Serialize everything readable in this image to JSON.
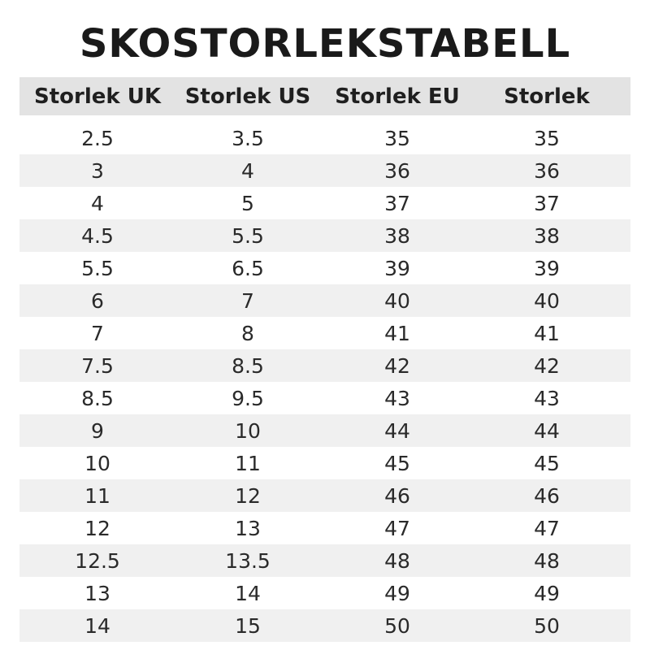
{
  "title": "SKOSTORLEKSTABELL",
  "table": {
    "header": [
      "Storlek UK",
      "Storlek US",
      "Storlek EU",
      "Storlek"
    ],
    "rows": [
      [
        2.5,
        3.5,
        35,
        35
      ],
      [
        3,
        4,
        36,
        36
      ],
      [
        4,
        5,
        37,
        37
      ],
      [
        4.5,
        5.5,
        38,
        38
      ],
      [
        5.5,
        6.5,
        39,
        39
      ],
      [
        6,
        7,
        40,
        40
      ],
      [
        7,
        8,
        41,
        41
      ],
      [
        7.5,
        8.5,
        42,
        42
      ],
      [
        8.5,
        9.5,
        43,
        43
      ],
      [
        9,
        10,
        44,
        44
      ],
      [
        10,
        11,
        45,
        45
      ],
      [
        11,
        12,
        46,
        46
      ],
      [
        12,
        13,
        47,
        47
      ],
      [
        12.5,
        13.5,
        48,
        48
      ],
      [
        13,
        14,
        49,
        49
      ],
      [
        14,
        15,
        50,
        50
      ]
    ]
  }
}
